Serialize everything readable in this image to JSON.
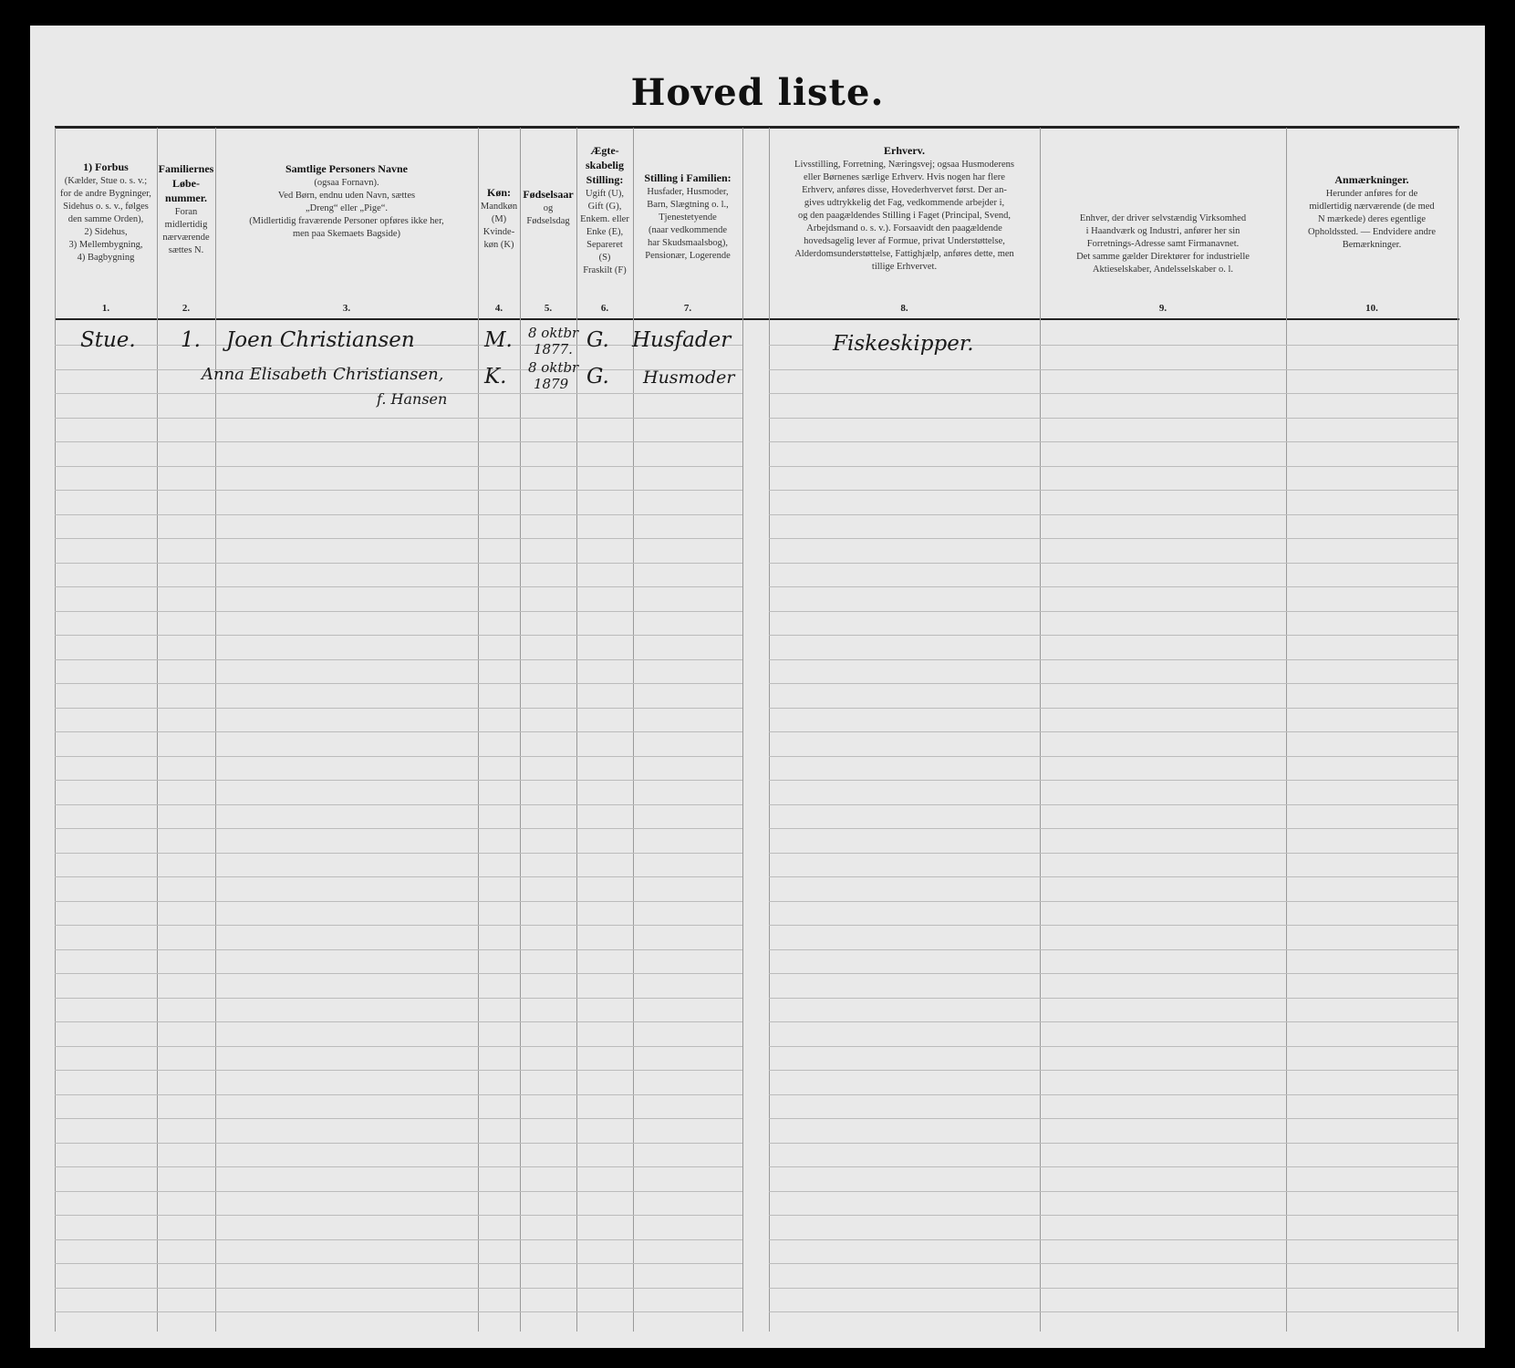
{
  "title": "Hoved liste.",
  "columns": [
    {
      "number": "1.",
      "heading": "1) Forbus",
      "lines": [
        "(Kælder, Stue o. s. v.;",
        "for de andre Bygninger,",
        "Sidehus o. s. v., følges",
        "den samme Orden),",
        "2) Sidehus,",
        "3) Mellembygning,",
        "4) Bagbygning"
      ]
    },
    {
      "number": "2.",
      "heading": "Familiernes Løbe-nummer.",
      "lines": [
        "Foran",
        "midlertidig",
        "nærværende",
        "sættes N."
      ]
    },
    {
      "number": "3.",
      "heading": "Samtlige Personers Navne",
      "lines": [
        "(ogsaa Fornavn).",
        "Ved Børn, endnu uden Navn, sættes",
        "„Dreng“ eller „Pige“.",
        "(Midlertidig fraværende Personer opføres ikke her,",
        "men paa Skemaets Bagside)"
      ]
    },
    {
      "number": "4.",
      "heading": "Køn:",
      "lines": [
        "Mandkøn",
        "(M)",
        "Kvinde-",
        "køn (K)"
      ]
    },
    {
      "number": "5.",
      "heading": "Fødselsaar",
      "lines": [
        "og",
        "Fødselsdag"
      ]
    },
    {
      "number": "6.",
      "heading": "Ægte-skabelig Stilling:",
      "lines": [
        "Ugift (U),",
        "Gift (G),",
        "Enkem. eller",
        "Enke (E),",
        "Separeret",
        "(S)",
        "Fraskilt (F)"
      ]
    },
    {
      "number": "7.",
      "heading": "Stilling i Familien:",
      "lines": [
        "Husfader, Husmoder,",
        "Barn, Slægtning o. l.,",
        "Tjenestetyende",
        "(naar vedkommende",
        "har Skudsmaalsbog),",
        "Pensionær, Logerende"
      ]
    },
    {
      "number": "8.",
      "heading": "Erhverv.",
      "lines": [
        "Livsstilling, Forretning, Næringsvej; ogsaa Husmoderens",
        "eller Børnenes særlige Erhverv. Hvis nogen har flere",
        "Erhverv, anføres disse, Hovederhvervet først. Der an-",
        "gives udtrykkelig det Fag, vedkommende arbejder i,",
        "og den paagældendes Stilling i Faget (Principal, Svend,",
        "Arbejdsmand o. s. v.). Forsaavidt den paagældende",
        "hovedsagelig lever af Formue, privat Understøttelse,",
        "Alderdomsunderstøttelse, Fattighjælp, anføres dette, men",
        "tillige Erhvervet."
      ]
    },
    {
      "number": "9.",
      "heading": "",
      "lines": [
        "Enhver, der driver selvstændig Virksomhed",
        "i Haandværk og Industri, anfører her sin",
        "Forretnings-Adresse samt Firmanavnet.",
        "Det samme gælder Direktører for industrielle",
        "Aktieselskaber, Andelsselskaber o. l."
      ]
    },
    {
      "number": "10.",
      "heading": "Anmærkninger.",
      "lines": [
        "Herunder anføres for de",
        "midlertidig nærværende (de med",
        "N mærkede) deres egentlige",
        "Opholdssted. — Endvidere andre",
        "Bemærkninger."
      ]
    }
  ],
  "entries": [
    {
      "building": "Stue.",
      "family_no": "1.",
      "name": "Joen Christiansen",
      "sex": "M.",
      "birth_day": "8 oktbr",
      "birth_year": "1877.",
      "marital": "G.",
      "position": "Husfader",
      "occupation": "Fiskeskipper."
    },
    {
      "name": "Anna Elisabeth Christiansen,",
      "name_note": "f. Hansen",
      "sex": "K.",
      "birth_day": "8 oktbr",
      "birth_year": "1879",
      "marital": "G.",
      "position": "Husmoder"
    }
  ]
}
